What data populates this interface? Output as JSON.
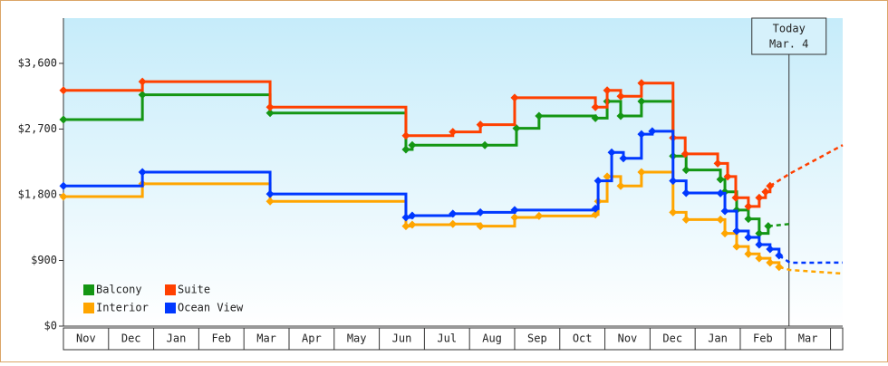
{
  "chart_data": {
    "type": "step-line",
    "categories": [
      "Nov",
      "Dec",
      "Jan",
      "Feb",
      "Mar",
      "Apr",
      "May",
      "Jun",
      "Jul",
      "Aug",
      "Sep",
      "Oct",
      "Nov",
      "Dec",
      "Jan",
      "Feb",
      "Mar"
    ],
    "xlim": [
      0,
      17.27
    ],
    "ylim": [
      0,
      4220
    ],
    "yticks": [
      {
        "value": 0,
        "label": "$0"
      },
      {
        "value": 900,
        "label": "$900"
      },
      {
        "value": 1800,
        "label": "$1,800"
      },
      {
        "value": 2700,
        "label": "$2,700"
      },
      {
        "value": 3600,
        "label": "$3,600"
      }
    ],
    "grid": false,
    "legend": "lower left",
    "today": {
      "x": 16.08,
      "label": [
        "Today",
        "Mar. 4"
      ]
    },
    "series": [
      {
        "name": "Balcony",
        "color": "#149614",
        "x": [
          0,
          1.75,
          4.58,
          7.59,
          7.73,
          9.34,
          10.04,
          10.54,
          11.79,
          12.05,
          12.35,
          12.81,
          13.51,
          13.8,
          14.56,
          14.66,
          14.92,
          15.18,
          15.42,
          15.62,
          16.1
        ],
        "values": [
          2830,
          3170,
          2920,
          2420,
          2480,
          2480,
          2710,
          2880,
          2850,
          3080,
          2880,
          3080,
          2330,
          2140,
          2010,
          1840,
          1590,
          1470,
          1270,
          1370,
          1400
        ]
      },
      {
        "name": "Suite",
        "color": "#ff4000",
        "x": [
          0,
          1.75,
          4.58,
          7.59,
          8.63,
          9.24,
          10.0,
          11.79,
          12.05,
          12.35,
          12.81,
          13.51,
          13.78,
          14.5,
          14.72,
          14.9,
          15.18,
          15.42,
          15.56,
          15.66,
          16.1,
          17.27
        ],
        "values": [
          3230,
          3350,
          3000,
          2610,
          2660,
          2760,
          3130,
          3000,
          3230,
          3150,
          3330,
          2580,
          2360,
          2230,
          2050,
          1760,
          1640,
          1760,
          1840,
          1920,
          2090,
          2480
        ]
      },
      {
        "name": "Interior",
        "color": "#ffa500",
        "x": [
          0,
          1.75,
          4.58,
          7.59,
          7.73,
          8.63,
          9.24,
          10.0,
          10.54,
          11.79,
          11.85,
          12.05,
          12.35,
          12.81,
          13.51,
          13.8,
          14.56,
          14.66,
          14.92,
          15.18,
          15.42,
          15.66,
          15.86,
          16.1,
          17.27
        ],
        "values": [
          1775,
          1950,
          1710,
          1370,
          1390,
          1400,
          1370,
          1490,
          1510,
          1530,
          1710,
          2050,
          1920,
          2110,
          1560,
          1460,
          1460,
          1270,
          1090,
          990,
          930,
          870,
          810,
          770,
          720
        ]
      },
      {
        "name": "Ocean View",
        "color": "#0038ff",
        "x": [
          0,
          1.75,
          4.58,
          7.59,
          7.73,
          8.63,
          9.24,
          10.0,
          11.79,
          11.85,
          12.15,
          12.41,
          12.81,
          13.05,
          13.51,
          13.8,
          14.56,
          14.66,
          14.92,
          15.18,
          15.42,
          15.66,
          15.86,
          16.1,
          17.27
        ],
        "values": [
          1920,
          2110,
          1810,
          1490,
          1515,
          1540,
          1560,
          1590,
          1610,
          1990,
          2380,
          2300,
          2630,
          2670,
          1990,
          1825,
          1820,
          1577,
          1303,
          1217,
          1117,
          1055,
          968,
          869,
          870
        ]
      }
    ]
  }
}
